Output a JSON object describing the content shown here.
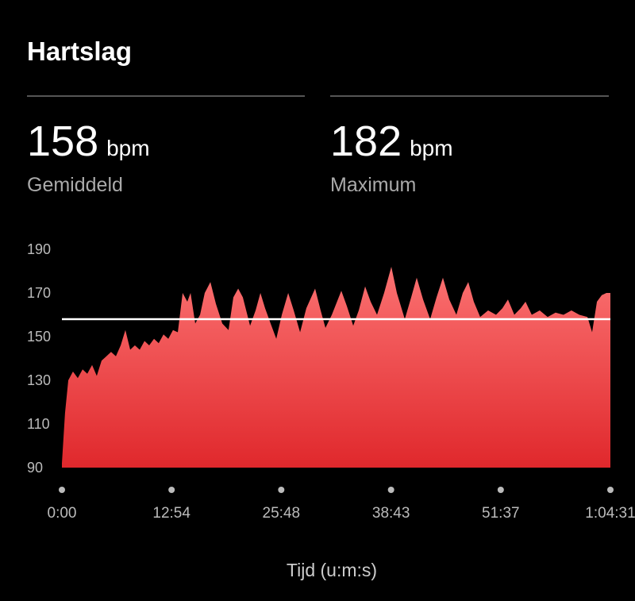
{
  "title": "Hartslag",
  "stats": [
    {
      "value": 158,
      "unit": "bpm",
      "label": "Gemiddeld"
    },
    {
      "value": 182,
      "unit": "bpm",
      "label": "Maximum"
    }
  ],
  "chart_data": {
    "type": "area",
    "xlabel": "Tijd (u:m:s)",
    "color": "#f25a5a",
    "x": [
      0,
      22,
      45,
      78,
      112,
      146,
      179,
      213,
      246,
      280,
      314,
      347,
      381,
      415,
      448,
      482,
      515,
      549,
      583,
      616,
      650,
      683,
      717,
      751,
      784,
      818,
      852,
      885,
      908,
      941,
      975,
      1008,
      1048,
      1087,
      1132,
      1176,
      1210,
      1244,
      1277,
      1328,
      1367,
      1401,
      1434,
      1473,
      1513,
      1552,
      1597,
      1636,
      1681,
      1725,
      1787,
      1826,
      1860,
      1905,
      1972,
      2011,
      2056,
      2095,
      2140,
      2179,
      2224,
      2274,
      2325,
      2364,
      2420,
      2465,
      2504,
      2549,
      2599,
      2644,
      2689,
      2734,
      2784,
      2829,
      2868,
      2907,
      2952,
      3008,
      3064,
      3109,
      3148,
      3193,
      3238,
      3272,
      3316,
      3372,
      3428,
      3484,
      3540,
      3596,
      3652,
      3709,
      3742,
      3776,
      3810,
      3843,
      3871
    ],
    "values": [
      92,
      115,
      130,
      134,
      131,
      135,
      133,
      137,
      132,
      139,
      141,
      143,
      141,
      146,
      153,
      144,
      146,
      144,
      148,
      146,
      149,
      147,
      151,
      149,
      153,
      152,
      170,
      166,
      170,
      156,
      160,
      170,
      175,
      165,
      156,
      153,
      168,
      172,
      168,
      155,
      162,
      170,
      163,
      156,
      149,
      160,
      170,
      162,
      152,
      163,
      172,
      162,
      154,
      160,
      171,
      164,
      155,
      162,
      173,
      166,
      160,
      170,
      182,
      170,
      158,
      168,
      177,
      167,
      158,
      168,
      177,
      167,
      160,
      170,
      175,
      166,
      159,
      162,
      160,
      163,
      167,
      160,
      163,
      166,
      160,
      162,
      159,
      161,
      160,
      162,
      160,
      159,
      152,
      166,
      169,
      170,
      170
    ],
    "xlim": [
      0,
      3871
    ],
    "ylim": [
      90,
      190
    ],
    "yticks": [
      90,
      110,
      130,
      150,
      170,
      190
    ],
    "xticks": [
      {
        "value": 0,
        "label": "0:00"
      },
      {
        "value": 774,
        "label": "12:54"
      },
      {
        "value": 1548,
        "label": "25:48"
      },
      {
        "value": 2323,
        "label": "38:43"
      },
      {
        "value": 3097,
        "label": "51:37"
      },
      {
        "value": 3871,
        "label": "1:04:31"
      }
    ],
    "grid": false
  }
}
